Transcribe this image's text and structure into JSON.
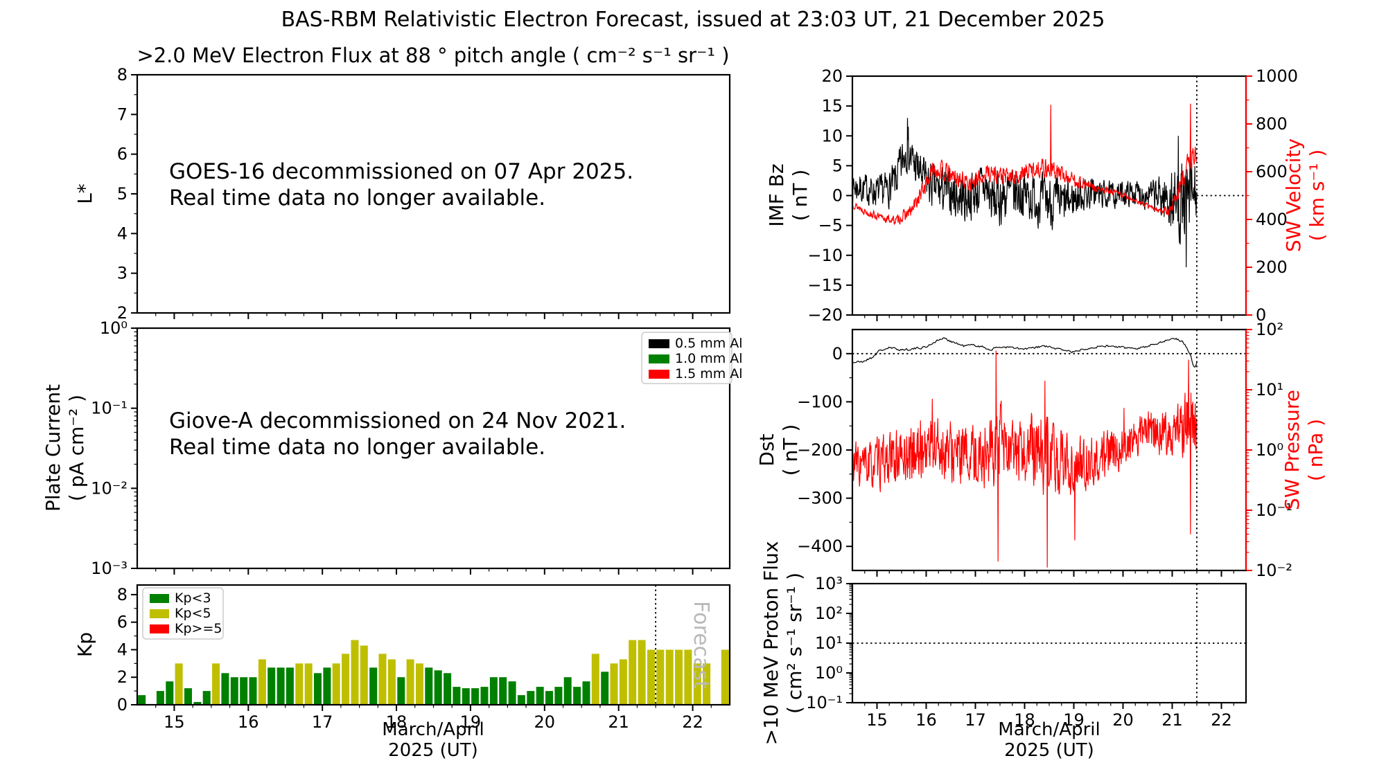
{
  "figure": {
    "title": "BAS-RBM Relativistic Electron Forecast, issued at 23:03 UT, 21 December 2025"
  },
  "x_axis": {
    "label_line1": "March/April",
    "label_line2": "2025 (UT)",
    "xlim": [
      14.5,
      22.5
    ],
    "ticks": [
      15,
      16,
      17,
      18,
      19,
      20,
      21,
      22
    ],
    "forecast_start": 21.5
  },
  "chart_data": [
    {
      "id": "electron_flux",
      "type": "line",
      "title": ">2.0 MeV Electron Flux at 88 ° pitch angle ( cm⁻² s⁻¹ sr⁻¹ )",
      "ylabel": "L*",
      "ylim": [
        2,
        8
      ],
      "yticks": [
        2,
        3,
        4,
        5,
        6,
        7,
        8
      ],
      "series": [],
      "annotation": {
        "line1": "GOES-16 decommissioned on 07 Apr 2025.",
        "line2": "Real time data no longer available."
      }
    },
    {
      "id": "plate_current",
      "type": "line",
      "ylabel_line1": "Plate Current",
      "ylabel_line2": "( pA cm⁻² )",
      "yscale": "log",
      "ylim_log": [
        -3,
        0
      ],
      "ytick_labels": [
        "10⁰",
        "10⁻¹",
        "10⁻²",
        "10⁻³"
      ],
      "legend": [
        {
          "label": "0.5 mm Al",
          "color": "#000000"
        },
        {
          "label": "1.0 mm Al",
          "color": "#008000"
        },
        {
          "label": "1.5 mm Al",
          "color": "#ff0000"
        }
      ],
      "series": [],
      "annotation": {
        "line1": "Giove-A decommissioned on 24 Nov 2021.",
        "line2": "Real time data no longer available."
      }
    },
    {
      "id": "kp",
      "type": "bar",
      "ylabel": "Kp",
      "ylim": [
        0,
        8.7
      ],
      "yticks": [
        0,
        2,
        4,
        6,
        8
      ],
      "yticks_minor": [
        1,
        3,
        5,
        7
      ],
      "legend": [
        {
          "label": "Kp<3",
          "color": "#008000"
        },
        {
          "label": "Kp<5",
          "color": "#bfbf00"
        },
        {
          "label": "Kp>=5",
          "color": "#ff0000"
        }
      ],
      "band_colors": {
        "g": "#008000",
        "y": "#bfbf00",
        "r": "#ff0000"
      },
      "band_thresholds": [
        3,
        5
      ],
      "forecast_label": "Forecast",
      "vline": 21.5,
      "bars": {
        "t_start": 14.5,
        "dt": 0.125,
        "kp_values": [
          0.7,
          0,
          1.0,
          1.7,
          3.0,
          1.2,
          0.2,
          1.0,
          3.0,
          2.3,
          2.0,
          2.0,
          2.0,
          3.3,
          2.7,
          2.7,
          2.7,
          3.0,
          3.0,
          2.3,
          2.7,
          3.0,
          3.7,
          4.7,
          4.3,
          2.7,
          3.7,
          3.3,
          2.0,
          3.3,
          3.0,
          2.7,
          2.5,
          2.3,
          1.3,
          1.2,
          1.2,
          1.3,
          2.0,
          2.0,
          1.7,
          0.7,
          1.0,
          1.3,
          1.0,
          1.3,
          2.0,
          1.3,
          1.7,
          3.7,
          2.4,
          3.0,
          3.3,
          4.7,
          4.7,
          4.0,
          4.0,
          4.0,
          4.0,
          4.0,
          3.0,
          3.0,
          0,
          4.0
        ]
      }
    },
    {
      "id": "imf_sw",
      "type": "line",
      "ylabel_line1": "IMF Bz",
      "ylabel_line2": "( nT )",
      "ylim": [
        -20,
        20
      ],
      "yticks": [
        -20,
        -15,
        -10,
        -5,
        0,
        5,
        10,
        15,
        20
      ],
      "y2label_line1": "SW Velocity",
      "y2label_line2": "( km s⁻¹ )",
      "y2lim": [
        0,
        1000
      ],
      "y2ticks": [
        0,
        200,
        400,
        600,
        800,
        1000
      ],
      "y2color": "#ff0000",
      "vline": 21.5,
      "hline": {
        "axis": "left",
        "value": 0,
        "x_from": 21.5
      },
      "series": [
        {
          "name": "IMF Bz",
          "color": "#000000",
          "axis": "left",
          "seed": 7,
          "x_end": 21.5,
          "clamp": [
            -19.5,
            19.5
          ],
          "keyframes": [
            [
              14.5,
              1.5
            ],
            [
              14.8,
              1
            ],
            [
              15.1,
              0.5
            ],
            [
              15.35,
              2
            ],
            [
              15.5,
              5
            ],
            [
              15.6,
              8.5
            ],
            [
              15.7,
              6
            ],
            [
              15.85,
              4
            ],
            [
              16.0,
              2.5
            ],
            [
              16.2,
              1
            ],
            [
              16.5,
              0.5
            ],
            [
              16.8,
              -0.5
            ],
            [
              17.0,
              0.5
            ],
            [
              17.2,
              1.5
            ],
            [
              17.35,
              -1
            ],
            [
              17.6,
              0
            ],
            [
              17.9,
              0.5
            ],
            [
              18.2,
              -0.5
            ],
            [
              18.5,
              -1
            ],
            [
              18.8,
              -1.5
            ],
            [
              19.1,
              0
            ],
            [
              19.4,
              0.5
            ],
            [
              19.7,
              0
            ],
            [
              20.0,
              0.3
            ],
            [
              20.3,
              0.5
            ],
            [
              20.6,
              0
            ],
            [
              20.9,
              -0.5
            ],
            [
              21.1,
              -1.5
            ],
            [
              21.3,
              -1
            ],
            [
              21.5,
              1
            ]
          ],
          "noise_amp": [
            [
              14.5,
              2.2
            ],
            [
              15.0,
              2.2
            ],
            [
              15.4,
              3
            ],
            [
              15.6,
              3.5
            ],
            [
              15.9,
              3
            ],
            [
              16.2,
              3.2
            ],
            [
              16.6,
              3.5
            ],
            [
              17.0,
              3.5
            ],
            [
              17.4,
              4
            ],
            [
              17.8,
              3.8
            ],
            [
              18.2,
              3.5
            ],
            [
              18.6,
              3.8
            ],
            [
              19.0,
              2.8
            ],
            [
              19.4,
              2.2
            ],
            [
              19.8,
              1.8
            ],
            [
              20.2,
              1.8
            ],
            [
              20.6,
              2.2
            ],
            [
              20.9,
              4
            ],
            [
              21.1,
              5.5
            ],
            [
              21.35,
              6
            ],
            [
              21.5,
              4.5
            ]
          ],
          "spikes": [
            [
              15.62,
              13
            ],
            [
              21.12,
              10
            ],
            [
              21.28,
              -12
            ]
          ]
        },
        {
          "name": "SW Velocity",
          "color": "#ff0000",
          "axis": "right",
          "seed": 13,
          "x_end": 21.5,
          "clamp": [
            5,
            995
          ],
          "keyframes": [
            [
              14.5,
              465
            ],
            [
              14.8,
              430
            ],
            [
              15.1,
              405
            ],
            [
              15.4,
              395
            ],
            [
              15.7,
              435
            ],
            [
              15.95,
              530
            ],
            [
              16.15,
              615
            ],
            [
              16.4,
              595
            ],
            [
              16.7,
              565
            ],
            [
              17.0,
              555
            ],
            [
              17.25,
              600
            ],
            [
              17.5,
              585
            ],
            [
              17.8,
              575
            ],
            [
              18.1,
              605
            ],
            [
              18.35,
              620
            ],
            [
              18.6,
              605
            ],
            [
              18.9,
              575
            ],
            [
              19.2,
              550
            ],
            [
              19.5,
              525
            ],
            [
              19.8,
              515
            ],
            [
              20.1,
              495
            ],
            [
              20.4,
              465
            ],
            [
              20.7,
              440
            ],
            [
              20.95,
              435
            ],
            [
              21.15,
              530
            ],
            [
              21.3,
              625
            ],
            [
              21.45,
              670
            ],
            [
              21.5,
              680
            ]
          ],
          "noise_amp": [
            [
              14.5,
              12
            ],
            [
              15.3,
              15
            ],
            [
              15.9,
              30
            ],
            [
              16.3,
              35
            ],
            [
              16.8,
              30
            ],
            [
              17.3,
              35
            ],
            [
              17.9,
              30
            ],
            [
              18.4,
              35
            ],
            [
              18.9,
              28
            ],
            [
              19.3,
              18
            ],
            [
              19.8,
              10
            ],
            [
              20.3,
              8
            ],
            [
              20.8,
              10
            ],
            [
              21.15,
              35
            ],
            [
              21.5,
              40
            ]
          ],
          "spikes": [
            [
              18.53,
              880
            ],
            [
              21.37,
              885
            ]
          ]
        }
      ]
    },
    {
      "id": "dst_pressure",
      "type": "line",
      "ylabel_line1": "Dst",
      "ylabel_line2": "( nT )",
      "ylim": [
        50,
        -450
      ],
      "yticks": [
        0,
        -100,
        -200,
        -300,
        -400
      ],
      "y2label_line1": "SW Pressure",
      "y2label_line2": "( nPa )",
      "y2scale": "log",
      "y2lim_log": [
        -2,
        2
      ],
      "y2tick_labels": [
        "10²",
        "10¹",
        "10⁰",
        "10⁻¹",
        "10⁻²"
      ],
      "y2color": "#ff0000",
      "vline": 21.5,
      "hline": {
        "axis": "left",
        "value": 0,
        "x_from": 14.5
      },
      "series": [
        {
          "name": "Dst",
          "color": "#000000",
          "axis": "left",
          "seed": 21,
          "step": 0.02,
          "x_end": 21.5,
          "clamp": [
            -445,
            45
          ],
          "keyframes": [
            [
              14.5,
              -18
            ],
            [
              14.7,
              -17
            ],
            [
              14.9,
              -8
            ],
            [
              15.05,
              6
            ],
            [
              15.25,
              12
            ],
            [
              15.5,
              8
            ],
            [
              15.75,
              10
            ],
            [
              16.0,
              14
            ],
            [
              16.2,
              26
            ],
            [
              16.35,
              32
            ],
            [
              16.55,
              24
            ],
            [
              16.75,
              16
            ],
            [
              16.95,
              18
            ],
            [
              17.15,
              14
            ],
            [
              17.3,
              8
            ],
            [
              17.5,
              14
            ],
            [
              17.7,
              13
            ],
            [
              17.95,
              9
            ],
            [
              18.2,
              12
            ],
            [
              18.4,
              16
            ],
            [
              18.6,
              11
            ],
            [
              18.8,
              8
            ],
            [
              19.0,
              3
            ],
            [
              19.2,
              10
            ],
            [
              19.45,
              14
            ],
            [
              19.7,
              16
            ],
            [
              19.95,
              13
            ],
            [
              20.2,
              11
            ],
            [
              20.45,
              14
            ],
            [
              20.7,
              22
            ],
            [
              20.9,
              28
            ],
            [
              21.05,
              32
            ],
            [
              21.2,
              26
            ],
            [
              21.3,
              12
            ],
            [
              21.38,
              -5
            ],
            [
              21.45,
              -32
            ],
            [
              21.5,
              -18
            ]
          ],
          "noise_amp": [
            [
              14.5,
              2
            ],
            [
              21.5,
              2
            ]
          ]
        },
        {
          "name": "SW Pressure",
          "color": "#ff0000",
          "axis": "right_log10",
          "seed": 33,
          "x_end": 21.5,
          "clamp": [
            -1.95,
            1.95
          ],
          "keyframes": [
            [
              14.5,
              -0.22
            ],
            [
              14.8,
              -0.28
            ],
            [
              15.1,
              -0.22
            ],
            [
              15.45,
              -0.12
            ],
            [
              15.8,
              -0.05
            ],
            [
              16.1,
              0.08
            ],
            [
              16.4,
              -0.02
            ],
            [
              16.7,
              -0.12
            ],
            [
              17.0,
              -0.12
            ],
            [
              17.25,
              -0.05
            ],
            [
              17.45,
              0.1
            ],
            [
              17.7,
              -0.1
            ],
            [
              18.0,
              -0.05
            ],
            [
              18.25,
              0.02
            ],
            [
              18.5,
              -0.18
            ],
            [
              18.75,
              -0.25
            ],
            [
              19.0,
              -0.28
            ],
            [
              19.3,
              -0.2
            ],
            [
              19.6,
              -0.12
            ],
            [
              19.9,
              0.0
            ],
            [
              20.2,
              0.18
            ],
            [
              20.5,
              0.3
            ],
            [
              20.8,
              0.28
            ],
            [
              21.05,
              0.35
            ],
            [
              21.3,
              0.45
            ],
            [
              21.5,
              0.42
            ]
          ],
          "noise_amp": [
            [
              14.5,
              0.32
            ],
            [
              15.5,
              0.38
            ],
            [
              16.1,
              0.48
            ],
            [
              16.6,
              0.42
            ],
            [
              17.1,
              0.42
            ],
            [
              17.45,
              0.6
            ],
            [
              17.9,
              0.42
            ],
            [
              18.4,
              0.6
            ],
            [
              18.9,
              0.42
            ],
            [
              19.5,
              0.35
            ],
            [
              20.1,
              0.3
            ],
            [
              20.7,
              0.3
            ],
            [
              21.1,
              0.35
            ],
            [
              21.35,
              0.5
            ],
            [
              21.5,
              0.4
            ]
          ],
          "spikes": [
            [
              16.12,
              0.85
            ],
            [
              17.42,
              1.65
            ],
            [
              17.46,
              -1.85
            ],
            [
              18.41,
              1.15
            ],
            [
              18.46,
              -1.95
            ],
            [
              19.02,
              -1.5
            ],
            [
              20.02,
              0.7
            ],
            [
              21.33,
              1.5
            ],
            [
              21.37,
              -1.4
            ]
          ]
        }
      ]
    },
    {
      "id": "proton_flux",
      "type": "line",
      "ylabel_line1": ">10 MeV Proton Flux",
      "ylabel_line2": "( cm² s⁻¹ sr⁻¹ )",
      "yscale": "log",
      "ylim_log": [
        -1,
        3
      ],
      "ytick_labels": [
        "10³",
        "10²",
        "10¹",
        "10⁰",
        "10⁻¹"
      ],
      "vline": 21.5,
      "hline": {
        "axis": "left_log10",
        "value_log": 1,
        "x_from": 14.5
      },
      "series": []
    }
  ]
}
